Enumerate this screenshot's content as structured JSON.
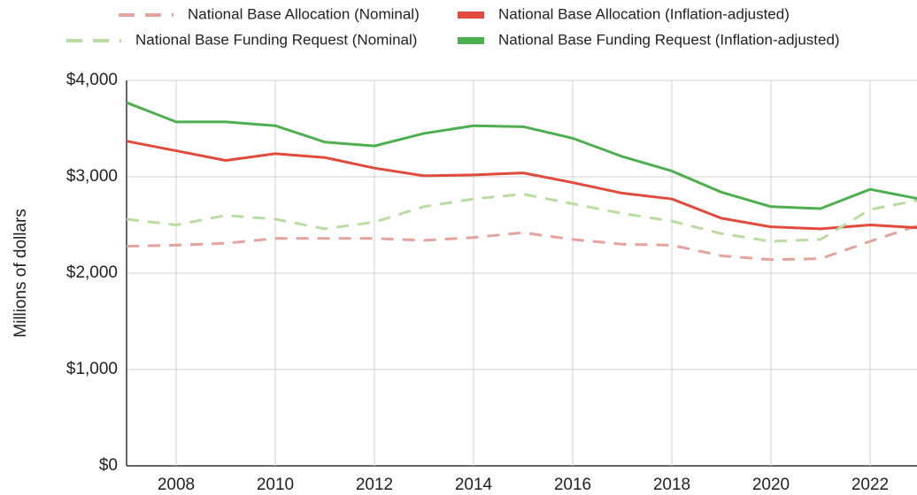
{
  "chart_data": {
    "type": "line",
    "y_label": "Millions of dollars",
    "x": [
      2007,
      2008,
      2009,
      2010,
      2011,
      2012,
      2013,
      2014,
      2015,
      2016,
      2017,
      2018,
      2019,
      2020,
      2021,
      2022,
      2023
    ],
    "series": [
      {
        "name": "National Base Allocation (Nominal)",
        "color": "#e6a29c",
        "line_style": "dashed",
        "values": [
          2280,
          2290,
          2310,
          2360,
          2360,
          2360,
          2340,
          2370,
          2420,
          2350,
          2300,
          2290,
          2180,
          2140,
          2150,
          2330,
          2500
        ]
      },
      {
        "name": "National Base Allocation (Inflation-adjusted)",
        "color": "#e24b3b",
        "line_style": "solid",
        "values": [
          3370,
          3270,
          3170,
          3240,
          3200,
          3090,
          3010,
          3020,
          3040,
          2940,
          2830,
          2770,
          2570,
          2480,
          2460,
          2500,
          2470
        ]
      },
      {
        "name": "National Base Funding Request (Nominal)",
        "color": "#b9dca3",
        "line_style": "dashed",
        "values": [
          2560,
          2500,
          2600,
          2560,
          2460,
          2530,
          2690,
          2770,
          2820,
          2720,
          2620,
          2540,
          2410,
          2330,
          2350,
          2660,
          2760
        ]
      },
      {
        "name": "National Base Funding Request (Inflation-adjusted)",
        "color": "#4daf4f",
        "line_style": "solid",
        "values": [
          3770,
          3570,
          3570,
          3530,
          3360,
          3320,
          3450,
          3530,
          3520,
          3400,
          3210,
          3060,
          2840,
          2690,
          2670,
          2870,
          2770
        ]
      }
    ],
    "xlim": [
      2007,
      2023
    ],
    "xticks": [
      2008,
      2010,
      2012,
      2014,
      2016,
      2018,
      2020,
      2022
    ],
    "ylim": [
      0,
      4000
    ],
    "yticks": [
      {
        "value": 0,
        "label": "$0"
      },
      {
        "value": 1000,
        "label": "$1,000"
      },
      {
        "value": 2000,
        "label": "$2,000"
      },
      {
        "value": 3000,
        "label": "$3,000"
      },
      {
        "value": 4000,
        "label": "$4,000"
      }
    ],
    "grid": true
  }
}
